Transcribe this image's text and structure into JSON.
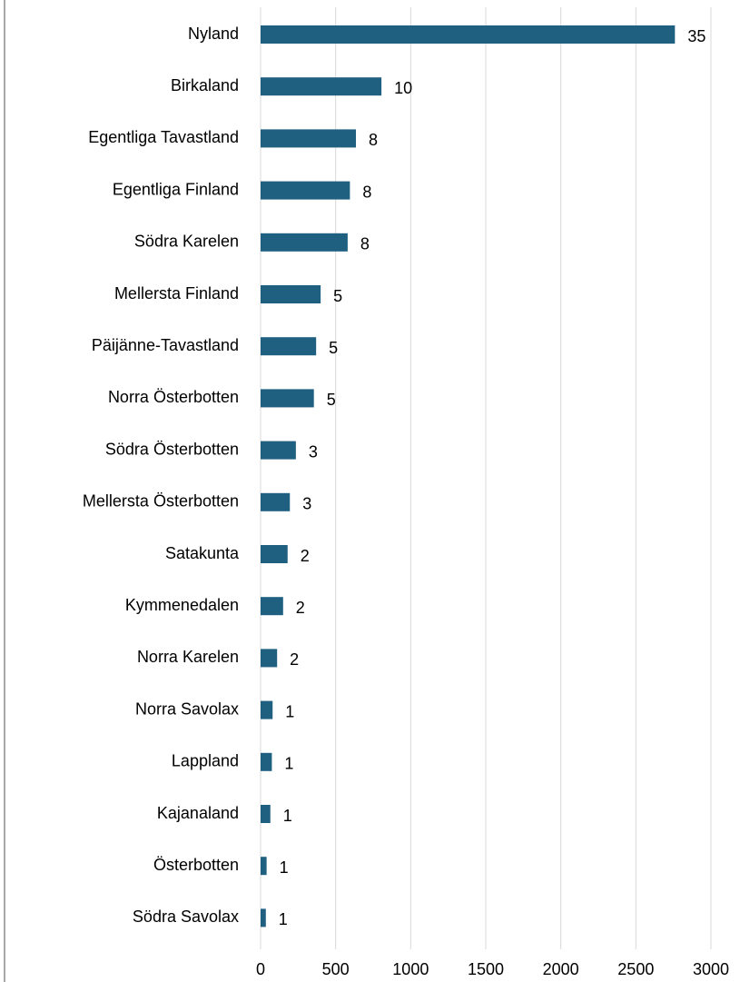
{
  "chart_data": {
    "type": "bar",
    "orientation": "horizontal",
    "categories": [
      "Nyland",
      "Birkaland",
      "Egentliga Tavastland",
      "Egentliga Finland",
      "Södra Karelen",
      "Mellersta Finland",
      "Päijänne-Tavastland",
      "Norra Österbotten",
      "Södra Österbotten",
      "Mellersta Österbotten",
      "Satakunta",
      "Kymmenedalen",
      "Norra Karelen",
      "Norra Savolax",
      "Lappland",
      "Kajanaland",
      "Österbotten",
      "Södra Savolax"
    ],
    "values": [
      2760,
      805,
      635,
      595,
      580,
      400,
      370,
      355,
      235,
      195,
      180,
      150,
      110,
      80,
      75,
      65,
      40,
      35
    ],
    "counts": [
      35,
      10,
      8,
      8,
      8,
      5,
      5,
      5,
      3,
      3,
      2,
      2,
      2,
      1,
      1,
      1,
      1,
      1
    ],
    "color": "#1f5f80",
    "xlim": [
      0,
      3000
    ],
    "xticks": [
      0,
      500,
      1000,
      1500,
      2000,
      2500,
      3000
    ],
    "grid": true
  }
}
